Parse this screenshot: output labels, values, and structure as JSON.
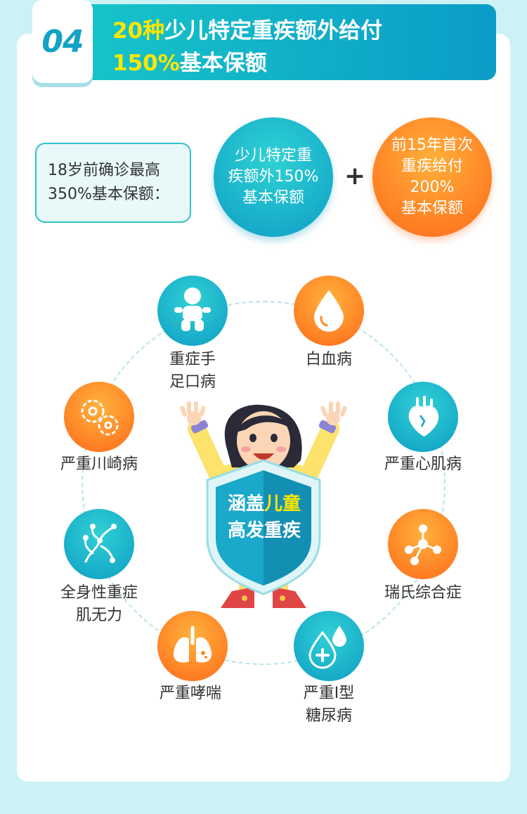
{
  "header": {
    "number": "04",
    "title_line1_highlight": "20种",
    "title_line1_rest": "少儿特定重疾额外给付",
    "title_line2_highlight": "150%",
    "title_line2_rest": "基本保额"
  },
  "intro": {
    "label_line1": "18岁前确诊最高",
    "label_line2": "350%基本保额：",
    "circle1": [
      "少儿特定重",
      "疾额外150%",
      "基本保额"
    ],
    "plus": "+",
    "circle2": [
      "前15年首次",
      "重疾给付",
      "200%",
      "基本保额"
    ]
  },
  "center": {
    "line1_prefix": "涵盖",
    "line1_highlight": "儿童",
    "line2": "高发重疾"
  },
  "diseases": [
    {
      "name": [
        "重症手",
        "足口病"
      ],
      "icon": "baby-icon",
      "color": "teal"
    },
    {
      "name": [
        "白血病"
      ],
      "icon": "blood-drop-icon",
      "color": "orange"
    },
    {
      "name": [
        "严重川崎病"
      ],
      "icon": "virus-cells-icon",
      "color": "orange"
    },
    {
      "name": [
        "严重心肌病"
      ],
      "icon": "heart-organ-icon",
      "color": "teal"
    },
    {
      "name": [
        "全身性重症",
        "肌无力"
      ],
      "icon": "nerve-icon",
      "color": "teal"
    },
    {
      "name": [
        "瑞氏综合症"
      ],
      "icon": "molecule-icon",
      "color": "orange"
    },
    {
      "name": [
        "严重哮喘"
      ],
      "icon": "lungs-icon",
      "color": "orange"
    },
    {
      "name": [
        "严重Ⅰ型",
        "糖尿病"
      ],
      "icon": "blood-sugar-icon",
      "color": "teal"
    }
  ]
}
